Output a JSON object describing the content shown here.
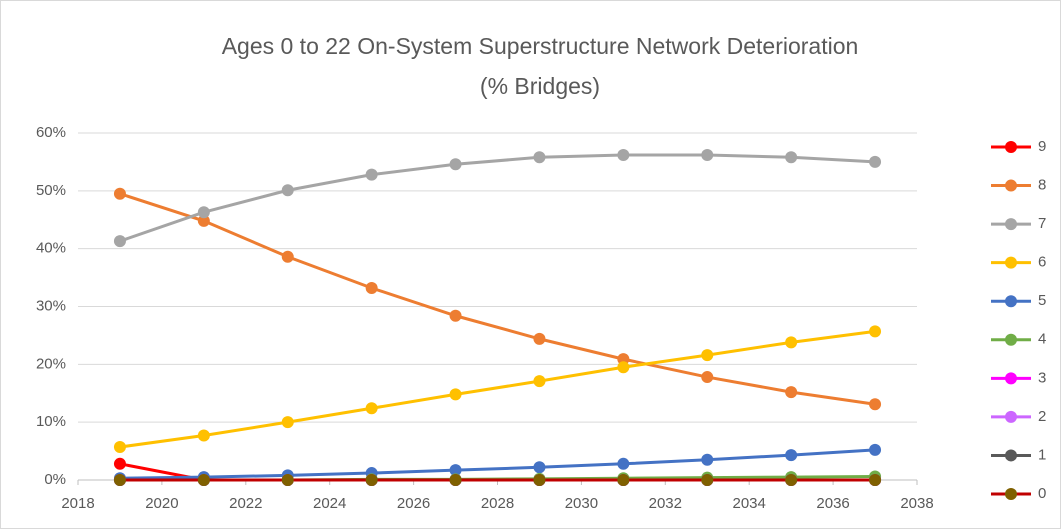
{
  "chart_data": {
    "type": "line",
    "title": [
      "Ages 0 to 22 On-System Superstructure Network Deterioration",
      "(%  Bridges)"
    ],
    "x": [
      2019,
      2021,
      2023,
      2025,
      2027,
      2029,
      2031,
      2033,
      2035,
      2037
    ],
    "xlim": [
      2018,
      2038
    ],
    "xticks": [
      2018,
      2020,
      2022,
      2024,
      2026,
      2028,
      2030,
      2032,
      2034,
      2036,
      2038
    ],
    "ylim": [
      0,
      60
    ],
    "yticks": [
      {
        "value": 0,
        "label": "0%"
      },
      {
        "value": 10,
        "label": "10%"
      },
      {
        "value": 20,
        "label": "20%"
      },
      {
        "value": 30,
        "label": "30%"
      },
      {
        "value": 40,
        "label": "40%"
      },
      {
        "value": 50,
        "label": "50%"
      },
      {
        "value": 60,
        "label": "60%"
      }
    ],
    "grid": true,
    "legend": "right",
    "series": [
      {
        "name": "9",
        "color": "#ff0000",
        "values": [
          2.8,
          0,
          0,
          0,
          0,
          0,
          0,
          0,
          0,
          0
        ]
      },
      {
        "name": "8",
        "color": "#ed7d31",
        "values": [
          49.5,
          44.8,
          38.6,
          33.2,
          28.4,
          24.4,
          20.9,
          17.8,
          15.2,
          13.1
        ]
      },
      {
        "name": "7",
        "color": "#a5a5a5",
        "values": [
          41.3,
          46.3,
          50.1,
          52.8,
          54.6,
          55.8,
          56.2,
          56.2,
          55.8,
          55.0
        ]
      },
      {
        "name": "6",
        "color": "#ffc000",
        "values": [
          5.7,
          7.7,
          10.0,
          12.4,
          14.8,
          17.1,
          19.5,
          21.6,
          23.8,
          25.7
        ]
      },
      {
        "name": "5",
        "color": "#4472c4",
        "values": [
          0.3,
          0.5,
          0.8,
          1.2,
          1.7,
          2.2,
          2.8,
          3.5,
          4.3,
          5.2
        ]
      },
      {
        "name": "4",
        "color": "#70ad47",
        "values": [
          0,
          0,
          0,
          0.1,
          0.1,
          0.2,
          0.3,
          0.4,
          0.5,
          0.6
        ]
      },
      {
        "name": "3",
        "color": "#ff00ff",
        "values": [
          0,
          0,
          0,
          0,
          0,
          0,
          0,
          0,
          0,
          0
        ]
      },
      {
        "name": "2",
        "color": "#cc66ff",
        "values": [
          0,
          0,
          0,
          0,
          0,
          0,
          0,
          0,
          0,
          0
        ]
      },
      {
        "name": "1",
        "color": "#595959",
        "values": [
          0,
          0,
          0,
          0,
          0,
          0,
          0,
          0,
          0,
          0
        ]
      },
      {
        "name": "0",
        "color": "#c00000",
        "marker_color": "#7f6000",
        "values": [
          0,
          0,
          0,
          0,
          0,
          0,
          0,
          0,
          0,
          0
        ]
      }
    ]
  }
}
